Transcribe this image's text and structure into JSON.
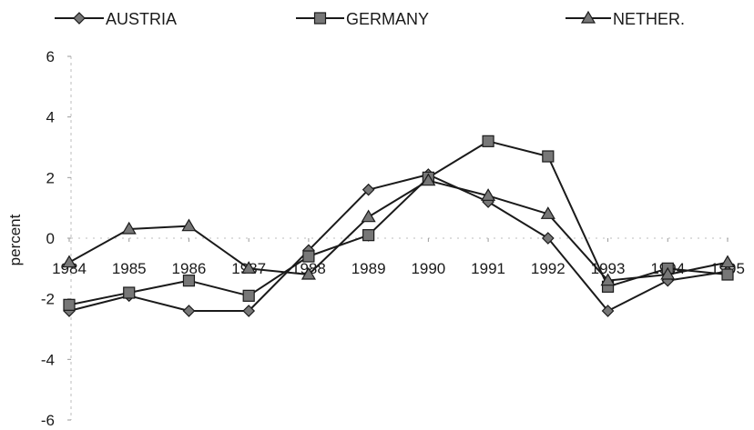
{
  "chart_data": {
    "type": "line",
    "ylabel": "percent",
    "xlabel": "",
    "ylim": [
      -6,
      6
    ],
    "yticks": [
      6,
      4,
      2,
      0,
      -2,
      -4,
      -6
    ],
    "categories": [
      "1984",
      "1985",
      "1986",
      "1987",
      "1988",
      "1989",
      "1990",
      "1991",
      "1992",
      "1993",
      "1994",
      "1995"
    ],
    "legend_position": "top",
    "grid": false,
    "series": [
      {
        "name": "AUSTRIA",
        "marker": "diamond",
        "color": "#1a1a1a",
        "values": [
          -2.4,
          -1.9,
          -2.4,
          -2.4,
          -0.4,
          1.6,
          2.1,
          1.2,
          0.0,
          -2.4,
          -1.4,
          -1.1
        ]
      },
      {
        "name": "GERMANY",
        "marker": "square",
        "color": "#1a1a1a",
        "values": [
          -2.2,
          -1.8,
          -1.4,
          -1.9,
          -0.6,
          0.1,
          2.0,
          3.2,
          2.7,
          -1.6,
          -1.0,
          -1.2
        ]
      },
      {
        "name": "NETHER.",
        "marker": "triangle",
        "color": "#1a1a1a",
        "values": [
          -0.8,
          0.3,
          0.4,
          -1.0,
          -1.2,
          0.7,
          1.9,
          1.4,
          0.8,
          -1.4,
          -1.2,
          -0.8
        ]
      }
    ]
  }
}
